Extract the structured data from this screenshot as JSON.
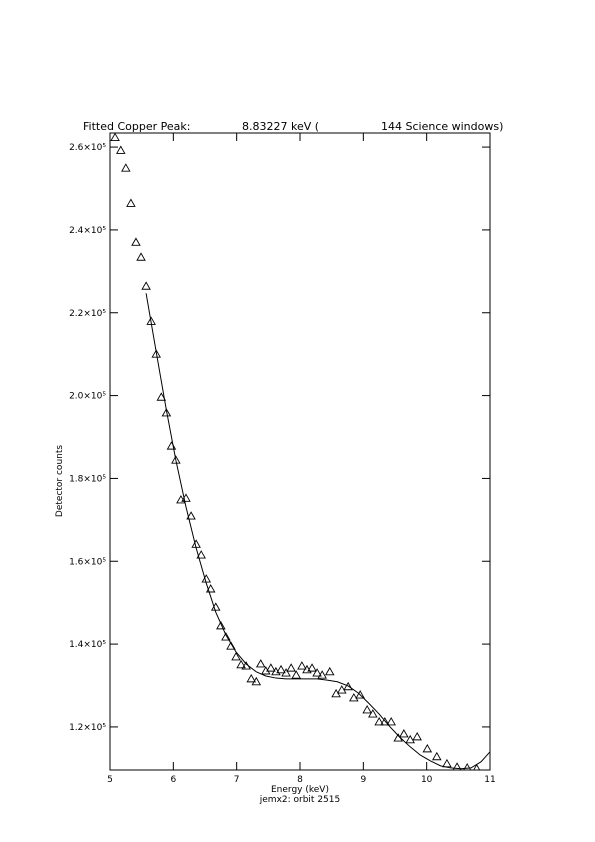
{
  "chart_data": {
    "type": "scatter",
    "title": [
      "Fitted Copper Peak:",
      "8.83227 keV (",
      "144 Science windows)"
    ],
    "xlabel": "Energy (keV)",
    "subtitle": "jemx2: orbit 2515",
    "ylabel": "Detector counts",
    "xlim": [
      5,
      11
    ],
    "xticks": [
      5,
      6,
      7,
      8,
      9,
      10,
      11
    ],
    "ylim": [
      109600,
      263400
    ],
    "yticks": [
      {
        "value": 120000,
        "label": "1.2×10⁵"
      },
      {
        "value": 140000,
        "label": "1.4×10⁵"
      },
      {
        "value": 160000,
        "label": "1.6×10⁵"
      },
      {
        "value": 180000,
        "label": "1.8×10⁵"
      },
      {
        "value": 200000,
        "label": "2.0×10⁵"
      },
      {
        "value": 220000,
        "label": "2.2×10⁵"
      },
      {
        "value": 240000,
        "label": "2.4×10⁵"
      },
      {
        "value": 260000,
        "label": "2.6×10⁵"
      }
    ],
    "series": [
      {
        "type": "scatter",
        "marker": "triangle",
        "color": "#000000",
        "x": [
          5.08,
          5.17,
          5.25,
          5.33,
          5.41,
          5.49,
          5.57,
          5.65,
          5.73,
          5.81,
          5.89,
          5.97,
          6.04,
          6.12,
          6.2,
          6.28,
          6.36,
          6.44,
          6.52,
          6.59,
          6.67,
          6.75,
          6.83,
          6.91,
          6.99,
          7.07,
          7.15,
          7.23,
          7.31,
          7.38,
          7.46,
          7.54,
          7.62,
          7.7,
          7.78,
          7.86,
          7.94,
          8.03,
          8.11,
          8.19,
          8.27,
          8.35,
          8.47,
          8.57,
          8.66,
          8.76,
          8.85,
          8.95,
          9.06,
          9.15,
          9.25,
          9.34,
          9.44,
          9.55,
          9.64,
          9.74,
          9.85,
          10.01,
          10.16,
          10.32,
          10.48,
          10.64,
          10.79
        ],
        "values": [
          262300,
          259200,
          254900,
          246400,
          237000,
          233400,
          226400,
          217900,
          210000,
          199600,
          195800,
          187800,
          184400,
          174800,
          175200,
          170900,
          164100,
          161500,
          155700,
          153300,
          148900,
          144400,
          141700,
          139500,
          136900,
          135000,
          134700,
          131600,
          130900,
          135200,
          133500,
          134200,
          133300,
          133800,
          133000,
          134200,
          132500,
          134700,
          133800,
          134200,
          133000,
          132500,
          133300,
          128000,
          128900,
          129700,
          127000,
          127700,
          124100,
          123100,
          121200,
          121200,
          121200,
          117300,
          118300,
          116900,
          117600,
          114700,
          112800,
          111100,
          110300,
          110100,
          109900
        ]
      },
      {
        "type": "line",
        "color": "#000000",
        "x": [
          5.57,
          5.73,
          5.89,
          6.04,
          6.2,
          6.36,
          6.52,
          6.67,
          6.83,
          6.99,
          7.15,
          7.31,
          7.46,
          7.62,
          7.78,
          7.94,
          8.11,
          8.27,
          8.43,
          8.59,
          8.76,
          8.92,
          9.08,
          9.25,
          9.41,
          9.57,
          9.74,
          9.9,
          10.06,
          10.22,
          10.38,
          10.54,
          10.7,
          10.86,
          11.0
        ],
        "values": [
          224700,
          210500,
          196500,
          184400,
          173100,
          163200,
          154700,
          147700,
          142200,
          138100,
          135200,
          133300,
          132300,
          131800,
          131600,
          131600,
          131600,
          131600,
          131300,
          130900,
          129900,
          128200,
          125800,
          123100,
          120200,
          117600,
          115200,
          113200,
          111800,
          110600,
          110100,
          109900,
          110100,
          111600,
          114000
        ]
      }
    ]
  }
}
